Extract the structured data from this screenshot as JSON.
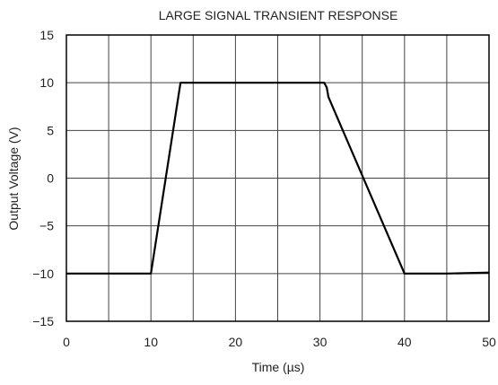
{
  "chart_data": {
    "type": "line",
    "title": "LARGE SIGNAL TRANSIENT RESPONSE",
    "xlabel": "Time (µs)",
    "ylabel": "Output Voltage (V)",
    "xlim": [
      0,
      50
    ],
    "ylim": [
      -15,
      15
    ],
    "x_ticks": [
      0,
      10,
      20,
      30,
      40,
      50
    ],
    "y_ticks": [
      15,
      10,
      5,
      0,
      -5,
      -10,
      -15
    ],
    "y_tick_labels": [
      "15",
      "10",
      "5",
      "0",
      "−5",
      "−10",
      "−15"
    ],
    "grid": true,
    "grid_step_x": 5,
    "grid_step_y": 5,
    "line_color": "#000000",
    "series": [
      {
        "x": [
          0,
          10,
          13.5,
          30.5,
          30.8,
          31,
          40,
          45,
          50
        ],
        "y": [
          -10,
          -10,
          10,
          10,
          9.5,
          8.5,
          -10,
          -10,
          -9.9
        ]
      }
    ]
  }
}
